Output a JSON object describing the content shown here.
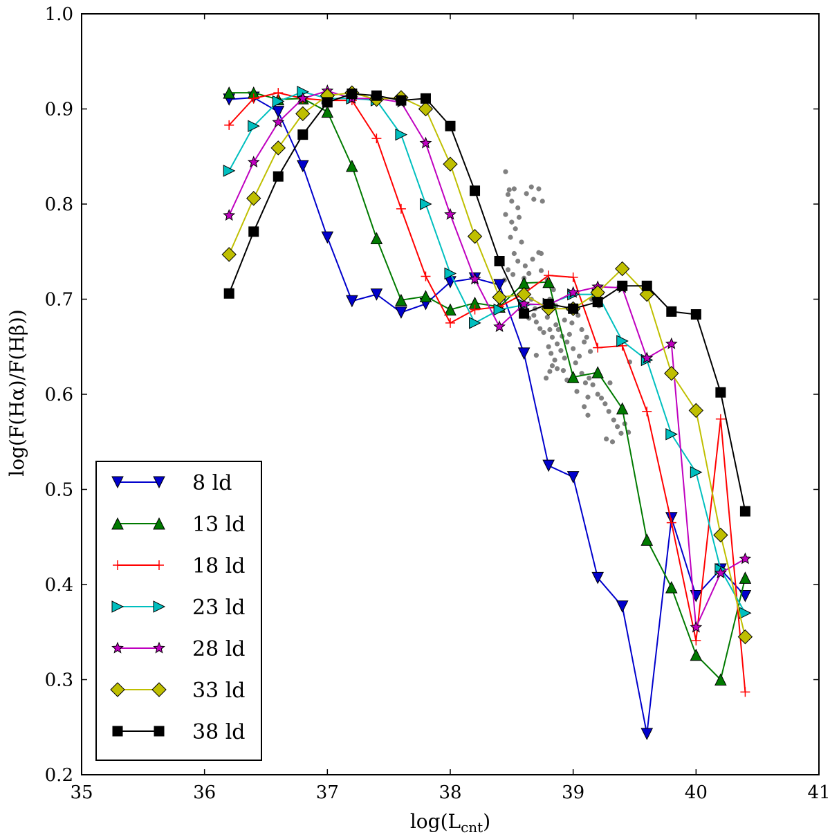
{
  "chart_data": {
    "type": "line",
    "xlabel": "log(L",
    "xlabel_sub": "cnt",
    "xlabel_close": ")",
    "ylabel": "log(F(Hα)/F(Hβ))",
    "xlim": [
      35,
      41
    ],
    "ylim": [
      0.2,
      1.0
    ],
    "xticks": [
      35,
      36,
      37,
      38,
      39,
      40,
      41
    ],
    "yticks": [
      0.2,
      0.3,
      0.4,
      0.5,
      0.6,
      0.7,
      0.8,
      0.9,
      1.0
    ],
    "xtick_labels": [
      "35",
      "36",
      "37",
      "38",
      "39",
      "40",
      "41"
    ],
    "ytick_labels": [
      "0.2",
      "0.3",
      "0.4",
      "0.5",
      "0.6",
      "0.7",
      "0.8",
      "0.9",
      "1.0"
    ],
    "grid": false,
    "legend_position": "lower-left",
    "x": [
      36.2,
      36.4,
      36.6,
      36.8,
      37.0,
      37.2,
      37.4,
      37.6,
      37.8,
      38.0,
      38.2,
      38.4,
      38.6,
      38.8,
      39.0,
      39.2,
      39.4,
      39.6,
      39.8,
      40.0,
      40.2,
      40.4
    ],
    "series": [
      {
        "name": "8 ld",
        "color": "#0000cc",
        "marker": "triangle-down",
        "values": [
          0.91,
          0.912,
          0.897,
          0.84,
          0.765,
          0.698,
          0.705,
          0.686,
          0.695,
          0.718,
          0.722,
          0.715,
          0.643,
          0.525,
          0.513,
          0.407,
          0.377,
          0.243,
          0.47,
          0.388,
          0.416,
          0.388
        ]
      },
      {
        "name": "13 ld",
        "color": "#007a00",
        "marker": "triangle-up",
        "values": [
          0.917,
          0.917,
          0.91,
          0.911,
          0.897,
          0.84,
          0.764,
          0.699,
          0.703,
          0.689,
          0.696,
          0.692,
          0.717,
          0.718,
          0.618,
          0.623,
          0.585,
          0.447,
          0.397,
          0.326,
          0.3,
          0.407
        ]
      },
      {
        "name": "18 ld",
        "color": "#ff0000",
        "marker": "plus",
        "values": [
          0.883,
          0.911,
          0.917,
          0.911,
          0.909,
          0.909,
          0.869,
          0.795,
          0.724,
          0.675,
          0.689,
          0.692,
          0.706,
          0.725,
          0.723,
          0.649,
          0.651,
          0.582,
          0.465,
          0.341,
          0.574,
          0.287
        ]
      },
      {
        "name": "23 ld",
        "color": "#00bfbf",
        "marker": "triangle-right",
        "values": [
          0.835,
          0.882,
          0.908,
          0.918,
          0.911,
          0.911,
          0.909,
          0.873,
          0.8,
          0.727,
          0.675,
          0.689,
          0.694,
          0.695,
          0.705,
          0.705,
          0.656,
          0.636,
          0.558,
          0.518,
          0.416,
          0.37
        ]
      },
      {
        "name": "28 ld",
        "color": "#bf00bf",
        "marker": "star",
        "values": [
          0.788,
          0.844,
          0.886,
          0.911,
          0.919,
          0.911,
          0.911,
          0.907,
          0.864,
          0.789,
          0.721,
          0.671,
          0.695,
          0.694,
          0.707,
          0.713,
          0.712,
          0.638,
          0.653,
          0.355,
          0.412,
          0.427
        ]
      },
      {
        "name": "33 ld",
        "color": "#bfbf00",
        "marker": "diamond",
        "values": [
          0.747,
          0.806,
          0.859,
          0.895,
          0.914,
          0.917,
          0.91,
          0.912,
          0.9,
          0.842,
          0.766,
          0.702,
          0.705,
          0.69,
          0.69,
          0.707,
          0.732,
          0.705,
          0.622,
          0.583,
          0.452,
          0.345
        ]
      },
      {
        "name": "38 ld",
        "color": "#000000",
        "marker": "square",
        "values": [
          0.706,
          0.771,
          0.829,
          0.873,
          0.907,
          0.916,
          0.914,
          0.909,
          0.911,
          0.882,
          0.814,
          0.74,
          0.685,
          0.695,
          0.69,
          0.697,
          0.714,
          0.714,
          0.687,
          0.684,
          0.602,
          0.477
        ]
      }
    ],
    "observations": {
      "color": "#808080",
      "points": [
        [
          38.45,
          0.834
        ],
        [
          38.48,
          0.815
        ],
        [
          38.52,
          0.816
        ],
        [
          38.5,
          0.803
        ],
        [
          38.55,
          0.796
        ],
        [
          38.47,
          0.81
        ],
        [
          38.62,
          0.811
        ],
        [
          38.66,
          0.818
        ],
        [
          38.72,
          0.816
        ],
        [
          38.75,
          0.803
        ],
        [
          38.68,
          0.805
        ],
        [
          38.45,
          0.789
        ],
        [
          38.5,
          0.781
        ],
        [
          38.53,
          0.774
        ],
        [
          38.56,
          0.786
        ],
        [
          38.58,
          0.76
        ],
        [
          38.49,
          0.765
        ],
        [
          38.52,
          0.748
        ],
        [
          38.55,
          0.74
        ],
        [
          38.47,
          0.731
        ],
        [
          38.44,
          0.72
        ],
        [
          38.51,
          0.726
        ],
        [
          38.58,
          0.705
        ],
        [
          38.62,
          0.712
        ],
        [
          38.66,
          0.7
        ],
        [
          38.69,
          0.69
        ],
        [
          38.72,
          0.749
        ],
        [
          38.74,
          0.748
        ],
        [
          38.74,
          0.73
        ],
        [
          38.79,
          0.72
        ],
        [
          38.81,
          0.7
        ],
        [
          38.84,
          0.71
        ],
        [
          38.86,
          0.693
        ],
        [
          38.64,
          0.68
        ],
        [
          38.68,
          0.683
        ],
        [
          38.7,
          0.676
        ],
        [
          38.73,
          0.669
        ],
        [
          38.76,
          0.665
        ],
        [
          38.79,
          0.681
        ],
        [
          38.81,
          0.668
        ],
        [
          38.83,
          0.66
        ],
        [
          38.86,
          0.673
        ],
        [
          38.88,
          0.668
        ],
        [
          38.91,
          0.661
        ],
        [
          38.8,
          0.65
        ],
        [
          38.82,
          0.643
        ],
        [
          38.85,
          0.636
        ],
        [
          38.87,
          0.653
        ],
        [
          38.9,
          0.646
        ],
        [
          38.93,
          0.638
        ],
        [
          38.95,
          0.655
        ],
        [
          38.97,
          0.663
        ],
        [
          39.0,
          0.648
        ],
        [
          39.02,
          0.633
        ],
        [
          39.05,
          0.64
        ],
        [
          38.78,
          0.617
        ],
        [
          38.81,
          0.624
        ],
        [
          38.83,
          0.63
        ],
        [
          38.92,
          0.625
        ],
        [
          38.95,
          0.615
        ],
        [
          39.07,
          0.622
        ],
        [
          39.1,
          0.612
        ],
        [
          39.03,
          0.603
        ],
        [
          39.12,
          0.597
        ],
        [
          39.13,
          0.617
        ],
        [
          39.16,
          0.61
        ],
        [
          39.09,
          0.587
        ],
        [
          39.12,
          0.578
        ],
        [
          39.2,
          0.6
        ],
        [
          39.23,
          0.596
        ],
        [
          39.26,
          0.59
        ],
        [
          39.29,
          0.582
        ],
        [
          39.33,
          0.573
        ],
        [
          39.36,
          0.566
        ],
        [
          39.39,
          0.559
        ],
        [
          39.42,
          0.569
        ],
        [
          39.45,
          0.56
        ],
        [
          39.27,
          0.553
        ],
        [
          39.32,
          0.55
        ],
        [
          39.15,
          0.7
        ],
        [
          39.18,
          0.71
        ],
        [
          39.21,
          0.693
        ],
        [
          38.98,
          0.705
        ],
        [
          38.96,
          0.69
        ],
        [
          38.93,
          0.678
        ],
        [
          38.99,
          0.675
        ],
        [
          39.04,
          0.683
        ],
        [
          39.07,
          0.668
        ],
        [
          39.09,
          0.655
        ],
        [
          39.11,
          0.66
        ],
        [
          39.14,
          0.645
        ],
        [
          39.3,
          0.612
        ],
        [
          39.46,
          0.634
        ],
        [
          38.61,
          0.735
        ],
        [
          38.64,
          0.727
        ],
        [
          38.67,
          0.742
        ],
        [
          38.6,
          0.722
        ],
        [
          38.87,
          0.627
        ],
        [
          38.7,
          0.641
        ]
      ]
    }
  }
}
